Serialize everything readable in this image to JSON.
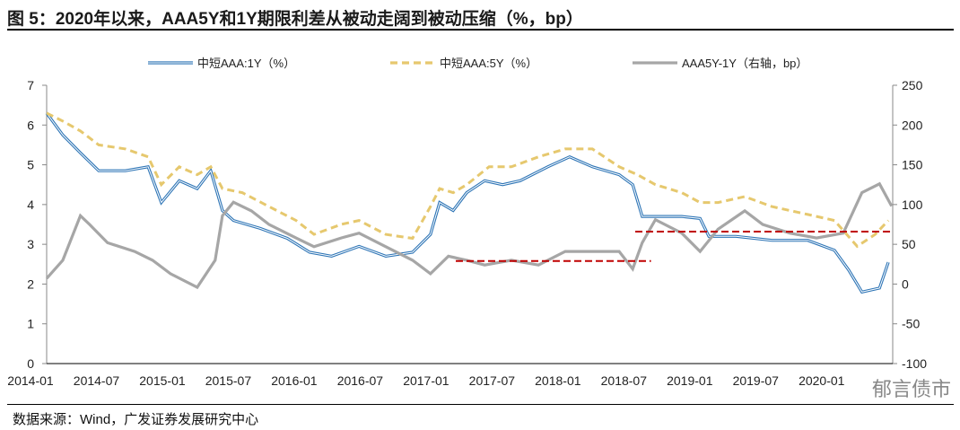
{
  "title": "图 5：2020年以来，AAA5Y和1Y期限利差从被动走阔到被动压缩（%，bp）",
  "source": "数据来源：Wind，广发证券发展研究中心",
  "watermark": "郁言债市",
  "chart_data": {
    "type": "line",
    "x_ticks": [
      "2014-01",
      "2014-07",
      "2015-01",
      "2015-07",
      "2016-01",
      "2016-07",
      "2017-01",
      "2017-07",
      "2018-01",
      "2018-07",
      "2019-01",
      "2019-07",
      "2020-01"
    ],
    "y_left": {
      "range": [
        0,
        7
      ],
      "ticks": [
        0,
        1,
        2,
        3,
        4,
        5,
        6,
        7
      ]
    },
    "y_right": {
      "range": [
        -100,
        250
      ],
      "ticks": [
        -100,
        -50,
        0,
        50,
        100,
        150,
        200,
        250
      ]
    },
    "grid": false,
    "legend_position": "top",
    "series": [
      {
        "name": "中短AAA:1Y（%）",
        "axis": "left",
        "color": "#2e75b6",
        "style": "double",
        "points": [
          [
            "2014-01-01",
            6.3
          ],
          [
            "2014-02-15",
            5.75
          ],
          [
            "2014-04-03",
            5.3
          ],
          [
            "2014-05-23",
            4.85
          ],
          [
            "2014-08-06",
            4.85
          ],
          [
            "2014-10-08",
            4.95
          ],
          [
            "2014-11-14",
            4.05
          ],
          [
            "2015-01-03",
            4.6
          ],
          [
            "2015-02-22",
            4.4
          ],
          [
            "2015-03-29",
            4.85
          ],
          [
            "2015-05-01",
            3.85
          ],
          [
            "2015-05-31",
            3.6
          ],
          [
            "2015-08-14",
            3.4
          ],
          [
            "2015-10-28",
            3.15
          ],
          [
            "2015-12-29",
            2.8
          ],
          [
            "2016-02-29",
            2.7
          ],
          [
            "2016-05-14",
            2.95
          ],
          [
            "2016-07-27",
            2.7
          ],
          [
            "2016-10-10",
            2.8
          ],
          [
            "2016-11-29",
            3.25
          ],
          [
            "2016-12-24",
            4.05
          ],
          [
            "2017-02-01",
            3.85
          ],
          [
            "2017-03-08",
            4.3
          ],
          [
            "2017-04-27",
            4.6
          ],
          [
            "2017-06-16",
            4.5
          ],
          [
            "2017-08-04",
            4.6
          ],
          [
            "2017-10-19",
            4.95
          ],
          [
            "2017-12-19",
            5.2
          ],
          [
            "2018-02-21",
            4.95
          ],
          [
            "2018-05-04",
            4.75
          ],
          [
            "2018-06-11",
            4.5
          ],
          [
            "2018-07-07",
            3.7
          ],
          [
            "2018-08-13",
            3.7
          ],
          [
            "2018-10-25",
            3.7
          ],
          [
            "2018-12-15",
            3.65
          ],
          [
            "2019-01-09",
            3.2
          ],
          [
            "2019-03-23",
            3.2
          ],
          [
            "2019-07-01",
            3.1
          ],
          [
            "2019-10-09",
            3.1
          ],
          [
            "2019-12-22",
            2.85
          ],
          [
            "2020-01-31",
            2.35
          ],
          [
            "2020-03-07",
            1.8
          ],
          [
            "2020-04-25",
            1.9
          ],
          [
            "2020-05-19",
            2.55
          ]
        ]
      },
      {
        "name": "中短AAA:5Y（%）",
        "axis": "left",
        "color": "#e6c86e",
        "style": "dashed",
        "points": [
          [
            "2014-01-01",
            6.3
          ],
          [
            "2014-02-15",
            6.1
          ],
          [
            "2014-04-03",
            5.85
          ],
          [
            "2014-05-23",
            5.5
          ],
          [
            "2014-08-06",
            5.4
          ],
          [
            "2014-10-08",
            5.2
          ],
          [
            "2014-11-14",
            4.5
          ],
          [
            "2015-01-03",
            4.95
          ],
          [
            "2015-02-22",
            4.75
          ],
          [
            "2015-03-29",
            4.95
          ],
          [
            "2015-05-01",
            4.4
          ],
          [
            "2015-06-25",
            4.3
          ],
          [
            "2015-09-08",
            3.95
          ],
          [
            "2015-11-22",
            3.6
          ],
          [
            "2016-01-11",
            3.25
          ],
          [
            "2016-03-25",
            3.5
          ],
          [
            "2016-05-14",
            3.6
          ],
          [
            "2016-07-27",
            3.25
          ],
          [
            "2016-10-10",
            3.15
          ],
          [
            "2016-11-29",
            3.95
          ],
          [
            "2016-12-24",
            4.4
          ],
          [
            "2017-02-01",
            4.3
          ],
          [
            "2017-03-08",
            4.5
          ],
          [
            "2017-05-09",
            4.95
          ],
          [
            "2017-07-10",
            4.95
          ],
          [
            "2017-09-24",
            5.2
          ],
          [
            "2017-12-07",
            5.4
          ],
          [
            "2018-02-21",
            5.4
          ],
          [
            "2018-05-04",
            4.95
          ],
          [
            "2018-06-24",
            4.75
          ],
          [
            "2018-08-13",
            4.5
          ],
          [
            "2018-10-25",
            4.3
          ],
          [
            "2018-12-15",
            4.05
          ],
          [
            "2019-02-04",
            4.05
          ],
          [
            "2019-04-17",
            4.2
          ],
          [
            "2019-07-01",
            3.95
          ],
          [
            "2019-10-09",
            3.75
          ],
          [
            "2019-12-22",
            3.6
          ],
          [
            "2020-02-24",
            2.95
          ],
          [
            "2020-04-13",
            3.25
          ],
          [
            "2020-05-19",
            3.6
          ]
        ]
      },
      {
        "name": "AAA5Y-1Y（右轴，bp）",
        "axis": "right",
        "color": "#a6a6a6",
        "style": "solid",
        "points": [
          [
            "2014-01-01",
            7
          ],
          [
            "2014-02-15",
            30
          ],
          [
            "2014-04-03",
            86
          ],
          [
            "2014-04-28",
            75
          ],
          [
            "2014-06-17",
            52
          ],
          [
            "2014-09-01",
            41
          ],
          [
            "2014-10-20",
            30
          ],
          [
            "2014-12-09",
            13
          ],
          [
            "2015-02-22",
            -4
          ],
          [
            "2015-04-11",
            30
          ],
          [
            "2015-05-01",
            86
          ],
          [
            "2015-05-31",
            103
          ],
          [
            "2015-07-20",
            92
          ],
          [
            "2015-09-08",
            75
          ],
          [
            "2015-11-22",
            58
          ],
          [
            "2016-01-11",
            47
          ],
          [
            "2016-03-25",
            58
          ],
          [
            "2016-05-14",
            64
          ],
          [
            "2016-07-27",
            47
          ],
          [
            "2016-10-10",
            30
          ],
          [
            "2016-11-29",
            13
          ],
          [
            "2017-01-18",
            35
          ],
          [
            "2017-03-08",
            30
          ],
          [
            "2017-04-27",
            24
          ],
          [
            "2017-07-10",
            30
          ],
          [
            "2017-09-24",
            24
          ],
          [
            "2017-12-07",
            41
          ],
          [
            "2018-02-21",
            41
          ],
          [
            "2018-05-04",
            41
          ],
          [
            "2018-06-11",
            19
          ],
          [
            "2018-07-07",
            52
          ],
          [
            "2018-08-13",
            81
          ],
          [
            "2018-10-25",
            64
          ],
          [
            "2018-12-15",
            41
          ],
          [
            "2019-02-04",
            69
          ],
          [
            "2019-04-17",
            92
          ],
          [
            "2019-06-06",
            75
          ],
          [
            "2019-08-20",
            64
          ],
          [
            "2019-11-03",
            58
          ],
          [
            "2020-01-16",
            64
          ],
          [
            "2020-03-07",
            115
          ],
          [
            "2020-04-25",
            126
          ],
          [
            "2020-05-28",
            98
          ]
        ]
      }
    ],
    "reference_lines": [
      {
        "axis": "right",
        "value": 29,
        "from": "2017-02-08",
        "to": "2018-08-01",
        "color": "#c00000",
        "style": "dashed"
      },
      {
        "axis": "right",
        "value": 66,
        "from": "2018-06-18",
        "to": "2020-05-28",
        "color": "#c00000",
        "style": "dashed"
      }
    ]
  }
}
